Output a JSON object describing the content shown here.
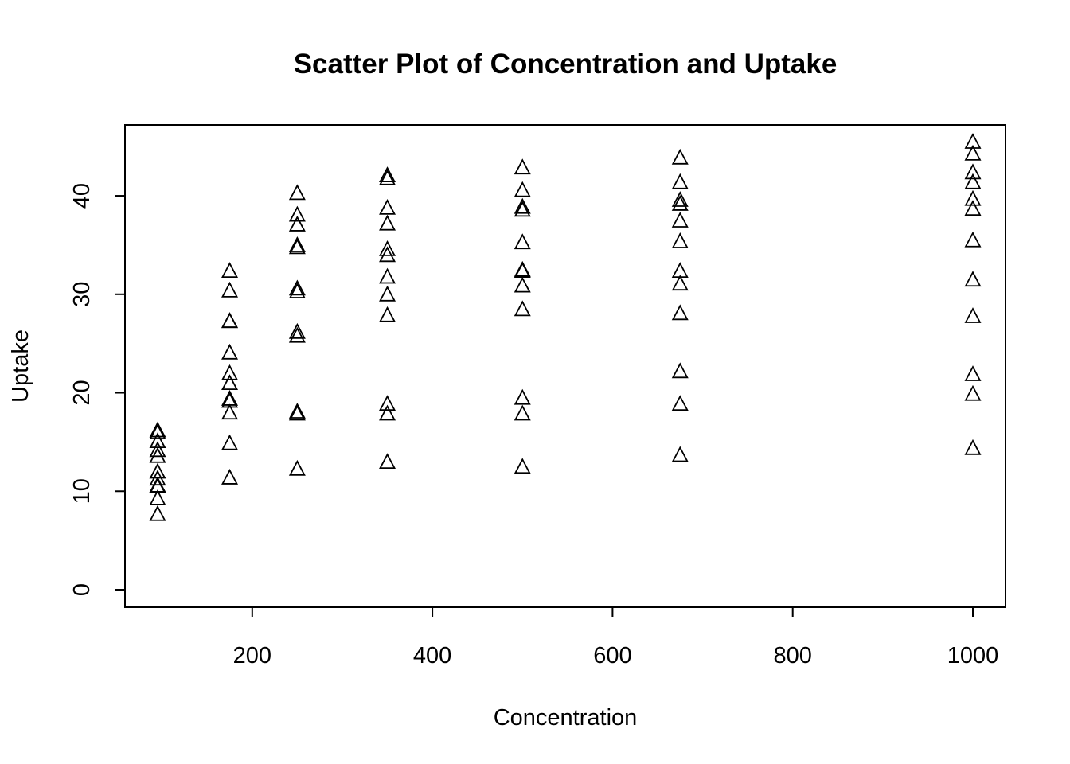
{
  "chart_data": {
    "type": "scatter",
    "title": "Scatter Plot of Concentration and Uptake",
    "xlabel": "Concentration",
    "ylabel": "Uptake",
    "xlim": [
      95,
      1000
    ],
    "ylim": [
      0,
      45.5
    ],
    "x_ticks": [
      200,
      400,
      600,
      800,
      1000
    ],
    "y_ticks": [
      0,
      10,
      20,
      30,
      40
    ],
    "marker": "open-triangle",
    "point_color": "#000000",
    "grid": false,
    "legend": "none",
    "series": [
      {
        "x": [
          95,
          175,
          250,
          350,
          500,
          675,
          1000,
          95,
          175,
          250,
          350,
          500,
          675,
          1000,
          95,
          175,
          250,
          350,
          500,
          675,
          1000,
          95,
          175,
          250,
          350,
          500,
          675,
          1000,
          95,
          175,
          250,
          350,
          500,
          675,
          1000,
          95,
          175,
          250,
          350,
          500,
          675,
          1000,
          95,
          175,
          250,
          350,
          500,
          675,
          1000,
          95,
          175,
          250,
          350,
          500,
          675,
          1000,
          95,
          175,
          250,
          350,
          500,
          675,
          1000,
          95,
          175,
          250,
          350,
          500,
          675,
          1000,
          95,
          175,
          250,
          350,
          500,
          675,
          1000,
          95,
          175,
          250,
          350,
          500,
          675,
          1000
        ],
        "y": [
          16.0,
          30.4,
          34.8,
          37.2,
          35.3,
          39.2,
          39.7,
          13.6,
          27.3,
          37.1,
          41.8,
          40.6,
          41.4,
          44.3,
          16.2,
          32.4,
          40.3,
          42.1,
          42.9,
          43.9,
          45.5,
          14.2,
          24.1,
          30.3,
          34.6,
          32.5,
          35.4,
          38.7,
          9.3,
          27.3,
          35.0,
          38.8,
          38.6,
          37.5,
          42.4,
          15.1,
          21.0,
          38.1,
          34.0,
          38.9,
          39.6,
          41.4,
          10.6,
          19.2,
          26.2,
          30.0,
          30.9,
          32.4,
          35.5,
          12.0,
          22.0,
          30.6,
          31.8,
          32.4,
          31.1,
          31.5,
          11.3,
          19.4,
          25.8,
          27.9,
          28.5,
          28.1,
          27.8,
          10.5,
          14.9,
          18.1,
          18.9,
          19.5,
          22.2,
          21.9,
          7.7,
          11.4,
          12.3,
          13.0,
          12.5,
          13.7,
          14.4,
          10.6,
          18.0,
          17.9,
          17.9,
          17.9,
          18.9,
          19.9
        ]
      }
    ]
  }
}
